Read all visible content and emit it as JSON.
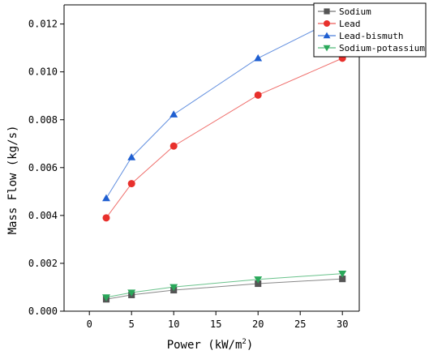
{
  "chart_data": {
    "type": "line",
    "xlabel": "Power (kW/m",
    "xlabel_sup": "2",
    "xlabel_end": ")",
    "ylabel": "Mass Flow (kg/s)",
    "xlim": [
      -3,
      32
    ],
    "ylim": [
      0,
      0.0128
    ],
    "xticks": [
      0,
      5,
      10,
      15,
      20,
      25,
      30
    ],
    "yticks": [
      0.0,
      0.002,
      0.004,
      0.006,
      0.008,
      0.01,
      0.012
    ],
    "ytick_labels": [
      "0.000",
      "0.002",
      "0.004",
      "0.006",
      "0.008",
      "0.010",
      "0.012"
    ],
    "legend_placement": "top-right",
    "grid": false,
    "x": [
      2,
      5,
      10,
      20,
      30
    ],
    "series": [
      {
        "name": "Sodium",
        "marker": "square",
        "color": "#555555",
        "values": [
          0.0005,
          0.00068,
          0.00088,
          0.00115,
          0.00135
        ]
      },
      {
        "name": "Lead",
        "marker": "circle",
        "color": "#e8302c",
        "values": [
          0.0039,
          0.00533,
          0.0069,
          0.00903,
          0.01057
        ]
      },
      {
        "name": "Lead-bismuth",
        "marker": "triangle-up",
        "color": "#1f5fd1",
        "values": [
          0.00472,
          0.00643,
          0.00822,
          0.01057,
          0.01233
        ]
      },
      {
        "name": "Sodium-potassium",
        "marker": "triangle-down",
        "color": "#2aa85a",
        "values": [
          0.00058,
          0.00078,
          0.00101,
          0.00133,
          0.00157
        ]
      }
    ]
  }
}
